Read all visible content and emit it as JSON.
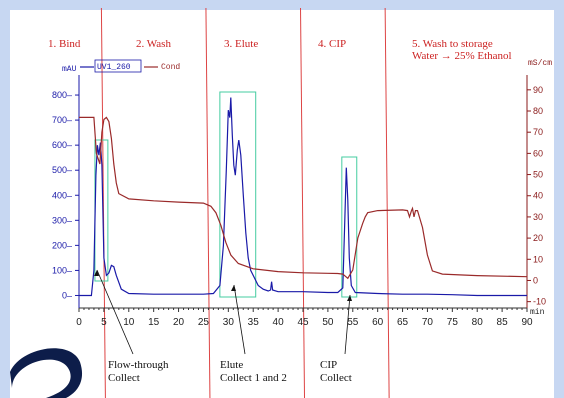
{
  "chart_data": {
    "type": "line",
    "x_axis": {
      "range": [
        0,
        90
      ],
      "ticks": [
        0,
        5,
        10,
        15,
        20,
        25,
        30,
        35,
        40,
        45,
        50,
        55,
        60,
        65,
        70,
        75,
        80,
        85,
        90
      ],
      "unit": "min"
    },
    "y_left": {
      "range": [
        -50,
        880
      ],
      "ticks": [
        0,
        100,
        200,
        300,
        400,
        500,
        600,
        700,
        800
      ],
      "unit": "mAU"
    },
    "y_right": {
      "range": [
        -13,
        97
      ],
      "ticks": [
        -10,
        0,
        10,
        20,
        30,
        40,
        50,
        60,
        70,
        80,
        90
      ],
      "unit": "mS/cm"
    },
    "legend": [
      {
        "label": "UV1_260",
        "color": "#1a1aa8"
      },
      {
        "label": "Cond",
        "color": "#9a2a2a"
      }
    ],
    "series": [
      {
        "name": "UV1_260",
        "axis": "left",
        "color": "#1a1aa8",
        "points": [
          [
            0,
            0
          ],
          [
            2.5,
            0
          ],
          [
            3,
            100
          ],
          [
            3.4,
            480
          ],
          [
            3.7,
            600
          ],
          [
            4.0,
            560
          ],
          [
            4.3,
            610
          ],
          [
            4.6,
            520
          ],
          [
            5,
            150
          ],
          [
            5.5,
            80
          ],
          [
            6,
            90
          ],
          [
            6.5,
            120
          ],
          [
            7,
            115
          ],
          [
            7.5,
            80
          ],
          [
            8.5,
            25
          ],
          [
            10,
            8
          ],
          [
            15,
            5
          ],
          [
            20,
            5
          ],
          [
            25,
            5
          ],
          [
            27,
            8
          ],
          [
            28.3,
            40
          ],
          [
            29,
            200
          ],
          [
            29.6,
            500
          ],
          [
            30,
            740
          ],
          [
            30.3,
            710
          ],
          [
            30.5,
            790
          ],
          [
            30.8,
            640
          ],
          [
            31.1,
            520
          ],
          [
            31.4,
            480
          ],
          [
            31.8,
            580
          ],
          [
            32.1,
            620
          ],
          [
            32.5,
            560
          ],
          [
            33,
            400
          ],
          [
            33.5,
            250
          ],
          [
            34,
            150
          ],
          [
            34.5,
            100
          ],
          [
            35,
            80
          ],
          [
            36,
            40
          ],
          [
            37,
            25
          ],
          [
            38,
            18
          ],
          [
            38.5,
            22
          ],
          [
            38.7,
            55
          ],
          [
            38.9,
            22
          ],
          [
            40,
            15
          ],
          [
            45,
            15
          ],
          [
            50,
            12
          ],
          [
            52,
            12
          ],
          [
            53,
            30
          ],
          [
            53.4,
            300
          ],
          [
            53.7,
            510
          ],
          [
            54,
            380
          ],
          [
            54.3,
            150
          ],
          [
            54.7,
            40
          ],
          [
            55.5,
            12
          ],
          [
            60,
            8
          ],
          [
            65,
            5
          ],
          [
            70,
            5
          ],
          [
            75,
            3
          ],
          [
            80,
            0
          ],
          [
            85,
            0
          ],
          [
            90,
            0
          ]
        ]
      },
      {
        "name": "Cond",
        "axis": "right",
        "color": "#9a2a2a",
        "points": [
          [
            0,
            77
          ],
          [
            3,
            77
          ],
          [
            3.5,
            60
          ],
          [
            4.2,
            55
          ],
          [
            4.6,
            70
          ],
          [
            5,
            76
          ],
          [
            5.5,
            77
          ],
          [
            6,
            75
          ],
          [
            6.5,
            67
          ],
          [
            7,
            55
          ],
          [
            7.5,
            46
          ],
          [
            8,
            41
          ],
          [
            10,
            38.5
          ],
          [
            15,
            37.6
          ],
          [
            20,
            37
          ],
          [
            25,
            36.5
          ],
          [
            26.5,
            35
          ],
          [
            27.5,
            32
          ],
          [
            28.5,
            26
          ],
          [
            29.5,
            18
          ],
          [
            30.5,
            12
          ],
          [
            32,
            8
          ],
          [
            35,
            5.5
          ],
          [
            40,
            4.2
          ],
          [
            45,
            3.6
          ],
          [
            50,
            3.4
          ],
          [
            52,
            3.3
          ],
          [
            53,
            3
          ],
          [
            54,
            1
          ],
          [
            55,
            5
          ],
          [
            56,
            20
          ],
          [
            57,
            27
          ],
          [
            57.5,
            30
          ],
          [
            58,
            32
          ],
          [
            60,
            33
          ],
          [
            65,
            33.3
          ],
          [
            66,
            33
          ],
          [
            66.4,
            30
          ],
          [
            66.8,
            33
          ],
          [
            67,
            34
          ],
          [
            67.3,
            30
          ],
          [
            67.6,
            33
          ],
          [
            68,
            33
          ],
          [
            69,
            25
          ],
          [
            70,
            12
          ],
          [
            71,
            4.5
          ],
          [
            73,
            3
          ],
          [
            80,
            2.3
          ],
          [
            90,
            1.8
          ]
        ]
      }
    ],
    "phase_labels": [
      "1. Bind",
      "2. Wash",
      "3. Elute",
      "4. CIP",
      "5. Wash to storage",
      "Water → 25% Ethanol"
    ],
    "phase_boundaries": [
      4.5,
      25.5,
      44.5,
      61.5
    ],
    "collect_windows": [
      [
        3.2,
        5.8
      ],
      [
        28.3,
        35.5
      ],
      [
        52.8,
        55.8
      ]
    ],
    "annotations": [
      {
        "line1": "Flow-through",
        "line2": "Collect",
        "x": 4.5
      },
      {
        "line1": "Elute",
        "line2": "Collect 1 and 2",
        "x": 31.5
      },
      {
        "line1": "CIP",
        "line2": "Collect",
        "x": 54.5
      }
    ],
    "grid": false
  }
}
